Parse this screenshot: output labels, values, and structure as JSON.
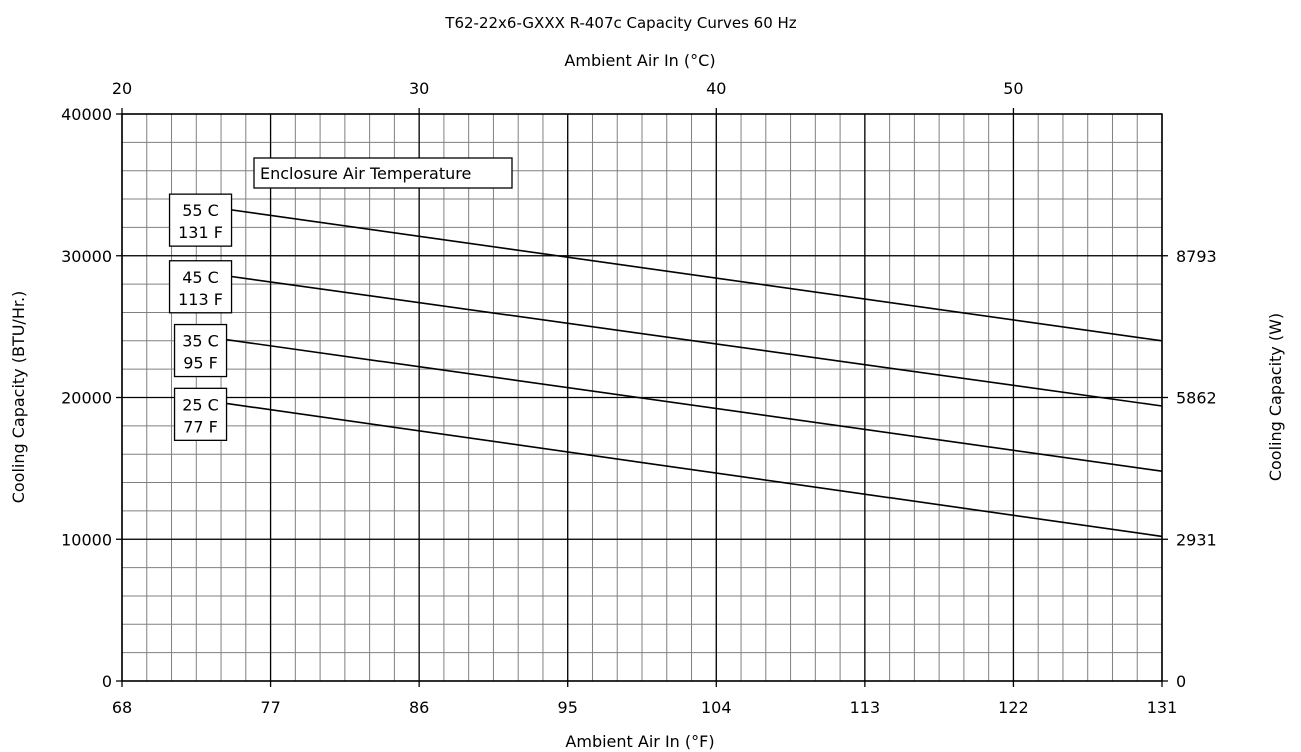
{
  "chart_data": {
    "type": "line",
    "title": "T62-22x6-GXXX R-407c Capacity Curves 60 Hz",
    "xlabel_bottom": "Ambient Air In (°F)",
    "xlabel_top": "Ambient Air In (°C)",
    "ylabel_left": "Cooling Capacity (BTU/Hr.)",
    "ylabel_right": "Cooling Capacity (W)",
    "xlim": [
      68,
      131
    ],
    "ylim": [
      0,
      40000
    ],
    "x_ticks": [
      "68",
      "77",
      "86",
      "95",
      "104",
      "113",
      "122",
      "131"
    ],
    "y_ticks": [
      "0",
      "10000",
      "20000",
      "30000",
      "40000"
    ],
    "top_ticks": [
      {
        "label": "20",
        "celsius": 20
      },
      {
        "label": "30",
        "celsius": 30
      },
      {
        "label": "40",
        "celsius": 40
      },
      {
        "label": "50",
        "celsius": 50
      }
    ],
    "right_ticks": [
      {
        "label": "0",
        "btu": 0
      },
      {
        "label": "2931",
        "btu": 10000
      },
      {
        "label": "5862",
        "btu": 20000
      },
      {
        "label": "8793",
        "btu": 30000
      }
    ],
    "grid": true,
    "legend_title": "Enclosure Air Temperature",
    "series": [
      {
        "name": "55 C\n131 F",
        "label_lines": [
          "55 C",
          "131 F"
        ],
        "x": [
          73,
          131
        ],
        "y": [
          33500,
          24000
        ]
      },
      {
        "name": "45 C\n113 F",
        "label_lines": [
          "45 C",
          "113 F"
        ],
        "x": [
          73,
          131
        ],
        "y": [
          28800,
          19400
        ]
      },
      {
        "name": "35 C\n95 F",
        "label_lines": [
          "35 C",
          "95 F"
        ],
        "x": [
          73,
          131
        ],
        "y": [
          24300,
          14800
        ]
      },
      {
        "name": "25 C\n77 F",
        "label_lines": [
          "25 C",
          "77 F"
        ],
        "x": [
          73,
          131
        ],
        "y": [
          19800,
          10200
        ]
      }
    ],
    "colors": {
      "line": "#000000",
      "grid_minor": "#808080",
      "grid_major": "#000000"
    }
  }
}
